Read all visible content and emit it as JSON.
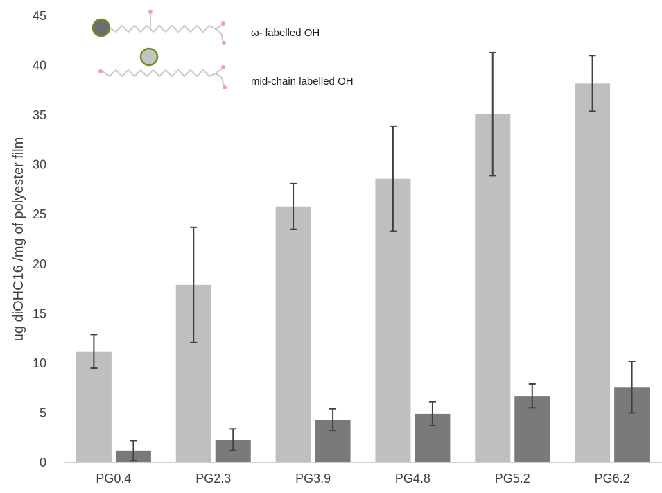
{
  "chart_data": {
    "type": "bar",
    "title": "",
    "xlabel": "",
    "ylabel": "ug diOHC16 /mg of polyester film",
    "ylim": [
      0,
      45
    ],
    "yticks": [
      0,
      5,
      10,
      15,
      20,
      25,
      30,
      35,
      40,
      45
    ],
    "grid": false,
    "legend_placement": "top-left",
    "categories": [
      "PG0.4",
      "PG2.3",
      "PG3.9",
      "PG4.8",
      "PG5.2",
      "PG6.2"
    ],
    "series": [
      {
        "name": "mid-chain labelled OH",
        "color": "#bfbfbf",
        "values": [
          11.2,
          17.9,
          25.8,
          28.6,
          35.1,
          38.2
        ],
        "error": [
          1.7,
          5.8,
          2.3,
          5.3,
          6.2,
          2.8
        ]
      },
      {
        "name": "ω- labelled OH",
        "color": "#7a7a7a",
        "values": [
          1.2,
          2.3,
          4.3,
          4.9,
          6.7,
          7.6
        ],
        "error": [
          1.0,
          1.1,
          1.1,
          1.2,
          1.2,
          2.6
        ]
      }
    ]
  },
  "legend": [
    {
      "label": "ω- labelled OH",
      "marker_color": "#6e6e6e",
      "icon": "omega-hydroxy-fatty-acid-structure-icon"
    },
    {
      "label": "mid-chain labelled OH",
      "marker_color": "#c4c4c4",
      "icon": "mid-chain-hydroxy-fatty-acid-structure-icon"
    }
  ],
  "colors": {
    "axis": "#bfbfbf",
    "error_bar": "#404040",
    "text": "#404040",
    "marker_outline": "#6b8e23",
    "molecule": "#bdbdbd",
    "heteroatom": "#f08080"
  }
}
